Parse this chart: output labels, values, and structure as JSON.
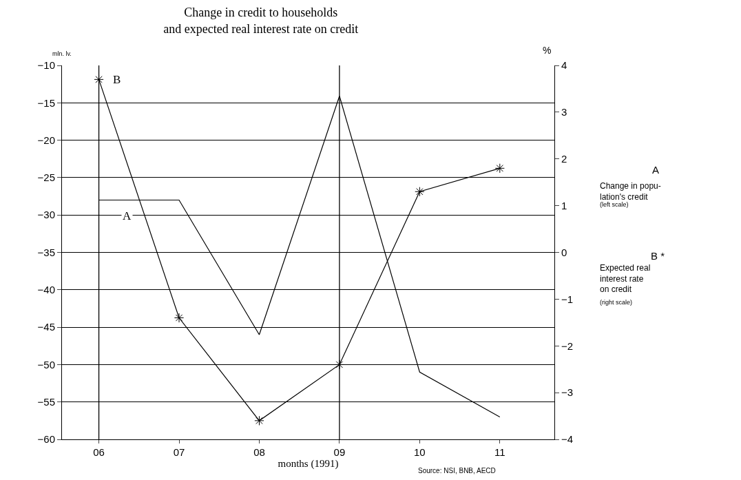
{
  "chart_data": {
    "type": "line",
    "title": "Change in credit to households\nand expected real interest rate on credit",
    "xlabel": "months (1991)",
    "ylabel": "mln. lv.",
    "y2label": "%",
    "categories": [
      "06",
      "07",
      "08",
      "09",
      "10",
      "11"
    ],
    "series": [
      {
        "name": "A",
        "color": "#000000",
        "values": [
          -28,
          -28,
          -46,
          -14.1,
          -51,
          -57
        ],
        "marker": "none"
      },
      {
        "name": "B",
        "color": "#000000",
        "values": [
          3.7,
          -1.4,
          -3.6,
          -2.4,
          1.3,
          1.8
        ],
        "axis": "y2",
        "marker": "cross"
      }
    ],
    "ylim": [
      -60,
      -10
    ],
    "yticks": [
      -60,
      -55,
      -50,
      -45,
      -40,
      -35,
      -30,
      -25,
      -20,
      -15,
      -10
    ],
    "y2lim": [
      -4,
      4
    ],
    "y2ticks": [
      -4,
      -3,
      -2,
      -1,
      0,
      1,
      2,
      3,
      4
    ],
    "ref_lines": [
      {
        "axis": "x",
        "value": "06"
      },
      {
        "axis": "x",
        "value": "09"
      }
    ],
    "grid": "y",
    "legend": false,
    "line_style": "solid",
    "annotations": [
      "A",
      "Change in popu-\nlation's credit",
      "(left scale)",
      "B *",
      "Expected real\ninterest rate\non credit",
      "(right scale)",
      "Source: NSI, BNB, AECD"
    ]
  }
}
